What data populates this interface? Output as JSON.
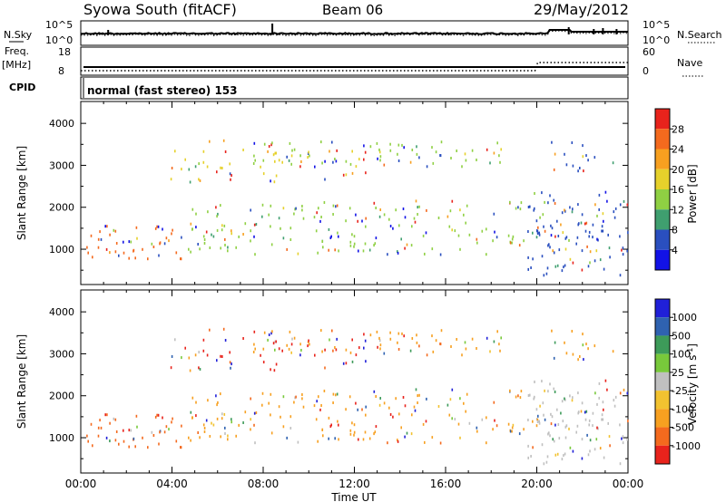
{
  "header": {
    "station": "Syowa South (fitACF)",
    "beam": "Beam 06",
    "date": "29/May/2012"
  },
  "noise_panel": {
    "left_label": "N.Sky",
    "right_label": "N.Search",
    "left_ticks": [
      "10^5",
      "10^0"
    ],
    "right_ticks": [
      "10^5",
      "10^0"
    ]
  },
  "freq_panel": {
    "left_label_1": "Freq.",
    "left_label_2": "[MHz]",
    "right_label": "Nave",
    "left_ticks": [
      "18",
      "8"
    ],
    "right_ticks": [
      "60",
      "0"
    ]
  },
  "cpid_panel": {
    "label": "CPID",
    "text": "normal (fast stereo) 153"
  },
  "time_axis": {
    "label": "Time UT",
    "ticks": [
      "00:00",
      "04:00",
      "08:00",
      "12:00",
      "16:00",
      "20:00",
      "00:00"
    ]
  },
  "chart_data": [
    {
      "type": "scatter",
      "title": "Power",
      "ylabel": "Slant Range [km]",
      "xlabel": "Time UT",
      "x_unit": "hours UT",
      "xlim": [
        0,
        24
      ],
      "ylim": [
        180,
        4500
      ],
      "y_ticks": [
        1000,
        2000,
        3000,
        4000
      ],
      "colorbar": {
        "label": "Power [dB]",
        "ticks": [
          "28",
          "24",
          "20",
          "16",
          "12",
          "8",
          "4"
        ],
        "colors": [
          "#e8231c",
          "#f46a1e",
          "#f7a020",
          "#e6d12b",
          "#8fd043",
          "#3f9f6f",
          "#2a4fbf",
          "#1212e6"
        ]
      },
      "bands": [
        {
          "x": [
            0.8,
            7.5
          ],
          "y": [
            3550,
            3620
          ],
          "density": 0.22,
          "dominant": "#f7a020"
        },
        {
          "x": [
            7.5,
            18.5
          ],
          "y": [
            3000,
            3600
          ],
          "density": 0.55,
          "dominant": "#8fd043"
        },
        {
          "x": [
            3.8,
            12.5
          ],
          "y": [
            2600,
            3400
          ],
          "density": 0.35,
          "dominant": "#e6d12b"
        },
        {
          "x": [
            0.2,
            4.5
          ],
          "y": [
            800,
            1600
          ],
          "density": 0.7,
          "dominant": "#f46a1e"
        },
        {
          "x": [
            4.5,
            19.5
          ],
          "y": [
            900,
            2200
          ],
          "density": 0.45,
          "dominant": "#8fd043"
        },
        {
          "x": [
            19.5,
            24
          ],
          "y": [
            400,
            2400
          ],
          "density": 0.65,
          "dominant": "#2a4fbf"
        },
        {
          "x": [
            20.5,
            23.8
          ],
          "y": [
            2800,
            3600
          ],
          "density": 0.3,
          "dominant": "#2a4fbf"
        }
      ]
    },
    {
      "type": "scatter",
      "title": "Velocity",
      "ylabel": "Slant Range [km]",
      "xlabel": "Time UT",
      "x_unit": "hours UT",
      "xlim": [
        0,
        24
      ],
      "ylim": [
        180,
        4500
      ],
      "y_ticks": [
        1000,
        2000,
        3000,
        4000
      ],
      "colorbar": {
        "label": "Velocity [m s^-1]",
        "ticks": [
          "1000",
          "500",
          "100",
          "25",
          "-25",
          "-100",
          "-500",
          "-1000"
        ],
        "colors": [
          "#2020d8",
          "#2f62b0",
          "#3d9b59",
          "#78c93b",
          "#c0c0c0",
          "#f2c230",
          "#f7a020",
          "#f46a1e",
          "#e8231c"
        ]
      },
      "bands": [
        {
          "x": [
            0.8,
            7.5
          ],
          "y": [
            3550,
            3620
          ],
          "density": 0.22,
          "dominant": "#f46a1e"
        },
        {
          "x": [
            7.5,
            18.5
          ],
          "y": [
            3000,
            3600
          ],
          "density": 0.55,
          "dominant": "#f7a020"
        },
        {
          "x": [
            3.8,
            12.5
          ],
          "y": [
            2600,
            3400
          ],
          "density": 0.35,
          "dominant": "#e8231c"
        },
        {
          "x": [
            0.2,
            4.5
          ],
          "y": [
            800,
            1600
          ],
          "density": 0.7,
          "dominant": "#f46a1e"
        },
        {
          "x": [
            4.5,
            19.5
          ],
          "y": [
            900,
            2200
          ],
          "density": 0.45,
          "dominant": "#f7a020"
        },
        {
          "x": [
            19.5,
            24
          ],
          "y": [
            400,
            2400
          ],
          "density": 0.65,
          "dominant": "#c0c0c0"
        },
        {
          "x": [
            20.5,
            23.8
          ],
          "y": [
            2800,
            3600
          ],
          "density": 0.3,
          "dominant": "#f7a020"
        }
      ]
    }
  ]
}
